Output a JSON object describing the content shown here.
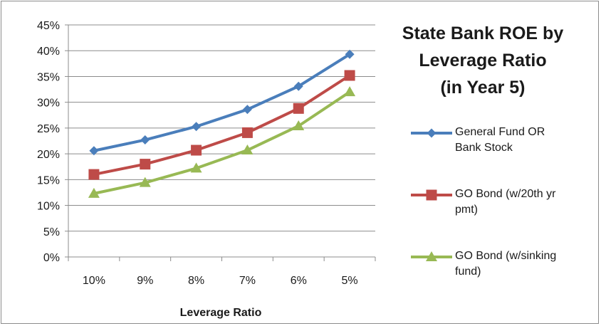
{
  "chart_data": {
    "type": "line",
    "title_lines": [
      "State Bank ROE by",
      "Leverage Ratio",
      "(in Year 5)"
    ],
    "xlabel": "Leverage Ratio",
    "ylabel": "",
    "categories": [
      "10%",
      "9%",
      "8%",
      "7%",
      "6%",
      "5%"
    ],
    "yticks": [
      "0%",
      "5%",
      "10%",
      "15%",
      "20%",
      "25%",
      "30%",
      "35%",
      "40%",
      "45%"
    ],
    "ylim": [
      0,
      45
    ],
    "grid": true,
    "legend_position": "right",
    "series": [
      {
        "name": "General Fund OR Bank Stock",
        "name_lines": [
          "General Fund OR",
          "Bank Stock"
        ],
        "marker": "diamond",
        "color": "#4a7ebb",
        "values": [
          20.6,
          22.7,
          25.3,
          28.6,
          33.1,
          39.3
        ]
      },
      {
        "name": "GO Bond (w/20th yr pmt)",
        "name_lines": [
          "GO Bond (w/20th yr",
          "pmt)"
        ],
        "marker": "square",
        "color": "#be4b48",
        "values": [
          16.0,
          18.0,
          20.7,
          24.1,
          28.8,
          35.2
        ]
      },
      {
        "name": "GO Bond (w/sinking fund)",
        "name_lines": [
          "GO Bond (w/sinking",
          "fund)"
        ],
        "marker": "triangle",
        "color": "#98b954",
        "values": [
          12.3,
          14.4,
          17.2,
          20.7,
          25.4,
          32.0
        ]
      }
    ]
  }
}
